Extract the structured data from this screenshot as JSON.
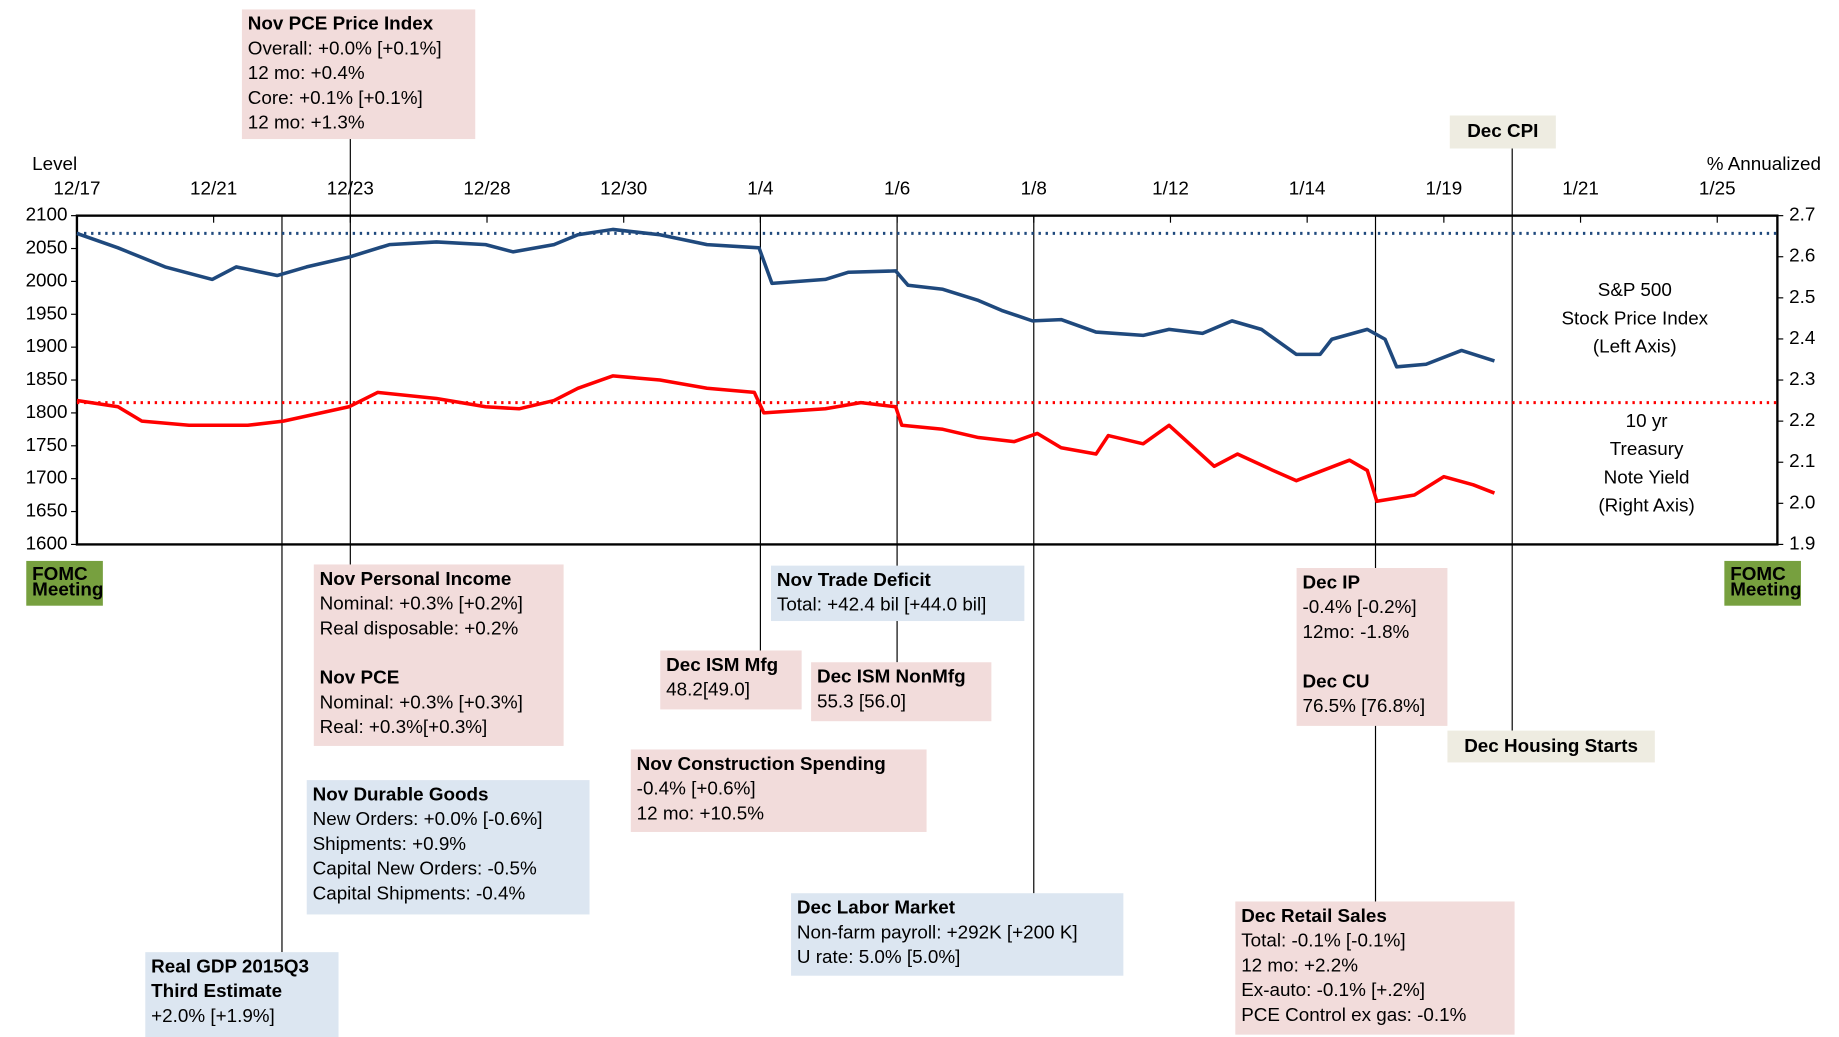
{
  "chart_data": {
    "type": "line",
    "y_label": "Level",
    "y2_label": "% Annualized",
    "xlim": [
      0,
      24.88
    ],
    "xticks": [
      {
        "value": 0,
        "label": "12/17"
      },
      {
        "value": 2,
        "label": "12/21"
      },
      {
        "value": 4,
        "label": "12/23"
      },
      {
        "value": 6,
        "label": "12/28"
      },
      {
        "value": 8,
        "label": "12/30"
      },
      {
        "value": 10,
        "label": "1/4"
      },
      {
        "value": 12,
        "label": "1/6"
      },
      {
        "value": 14,
        "label": "1/8"
      },
      {
        "value": 16,
        "label": "1/12"
      },
      {
        "value": 18,
        "label": "1/14"
      },
      {
        "value": 20,
        "label": "1/19"
      },
      {
        "value": 22,
        "label": "1/21"
      },
      {
        "value": 24,
        "label": "1/25"
      }
    ],
    "ylim": [
      1600,
      2100
    ],
    "yticks": [
      1600,
      1650,
      1700,
      1750,
      1800,
      1850,
      1900,
      1950,
      2000,
      2050,
      2100
    ],
    "y2lim": [
      1.9,
      2.7
    ],
    "y2ticks": [
      1.9,
      {
        "value": 2,
        "label": "2.0"
      },
      2.1,
      2.2,
      2.3,
      2.4,
      2.5,
      2.6,
      2.7
    ],
    "series": [
      {
        "label": [
          "S&P 500",
          "Stock  Price Index",
          "(Left Axis)"
        ],
        "color": "#1f497d",
        "ref": 2073,
        "x": [
          0,
          0.6,
          1.29,
          1.98,
          2.33,
          2.93,
          3.36,
          3.98,
          4.57,
          5.26,
          5.98,
          6.38,
          6.98,
          7.33,
          7.84,
          8.53,
          9.22,
          9.98,
          10.17,
          10.95,
          11.29,
          11.98,
          12.16,
          12.67,
          13.19,
          13.53,
          13.98,
          14.4,
          14.91,
          15.6,
          15.98,
          16.47,
          16.9,
          17.33,
          17.84,
          18.19,
          18.36,
          18.88,
          19.14,
          19.31,
          19.74,
          20.26,
          20.74
        ],
        "values": [
          2073,
          2051,
          2022,
          2003,
          2022,
          2009,
          2022,
          2037,
          2056,
          2060,
          2056,
          2045,
          2056,
          2071,
          2079,
          2071,
          2056,
          2051,
          1997,
          2003,
          2014,
          2016,
          1994,
          1988,
          1971,
          1956,
          1940,
          1942,
          1923,
          1918,
          1927,
          1921,
          1940,
          1927,
          1889,
          1889,
          1912,
          1927,
          1912,
          1870,
          1874,
          1895,
          1879
        ]
      },
      {
        "label": [
          "10 yr",
          "Treasury",
          "Note Yield",
          "(Right Axis)"
        ],
        "color": "#ff0000",
        "axis": "y2",
        "ref": 2.245,
        "x": [
          0,
          0.6,
          0.95,
          1.64,
          2.5,
          3.02,
          3.98,
          4.4,
          5.26,
          5.98,
          6.47,
          6.98,
          7.33,
          7.84,
          8.53,
          9.22,
          9.91,
          10.05,
          10.95,
          11.47,
          11.98,
          12.07,
          12.67,
          13.19,
          13.71,
          14.05,
          14.4,
          14.91,
          15.09,
          15.6,
          15.98,
          16.64,
          16.98,
          17.5,
          17.84,
          18.62,
          18.88,
          19.02,
          19.57,
          20,
          20.43,
          20.74
        ],
        "values": [
          2.25,
          2.235,
          2.2,
          2.19,
          2.19,
          2.2,
          2.235,
          2.27,
          2.255,
          2.235,
          2.23,
          2.25,
          2.28,
          2.31,
          2.3,
          2.28,
          2.27,
          2.22,
          2.23,
          2.245,
          2.235,
          2.19,
          2.18,
          2.16,
          2.15,
          2.17,
          2.135,
          2.12,
          2.165,
          2.145,
          2.19,
          2.09,
          2.12,
          2.08,
          2.055,
          2.105,
          2.08,
          2.005,
          2.02,
          2.065,
          2.045,
          2.025
        ]
      }
    ],
    "annotations": [
      {
        "x": 4,
        "color": "#f2dcdb",
        "sections": [
          {
            "title": [
              "Nov PCE Price Index"
            ],
            "lines": [
              "Overall: +0.0% [+0.1%]",
              "12 mo: +0.4%",
              "Core: +0.1% [+0.1%]",
              "12 mo: +1.3%"
            ]
          }
        ]
      },
      {
        "x": 21,
        "color": "#eeece1",
        "sections": [
          {
            "title": [
              "Dec CPI"
            ],
            "lines": []
          }
        ]
      },
      {
        "color": "#f2dcdb",
        "sections": [
          {
            "title": [
              "Nov Personal Income"
            ],
            "lines": [
              "Nominal:  +0.3% [+0.2%]",
              "Real disposable: +0.2%"
            ]
          },
          {
            "title": [
              "Nov PCE"
            ],
            "lines": [
              "Nominal: +0.3% [+0.3%]",
              "Real: +0.3%[+0.3%]"
            ]
          }
        ]
      },
      {
        "color": "#dce6f1",
        "sections": [
          {
            "title": [
              "Nov Durable Goods"
            ],
            "lines": [
              "New Orders: +0.0% [-0.6%]",
              "Shipments: +0.9%",
              "Capital New Orders: -0.5%",
              "Capital Shipments: -0.4%"
            ]
          }
        ]
      },
      {
        "x": 3,
        "color": "#dce6f1",
        "sections": [
          {
            "title": [
              "Real GDP 2015Q3",
              "Third Estimate"
            ],
            "lines": [
              "+2.0% [+1.9%]"
            ]
          }
        ]
      },
      {
        "x": 10,
        "color": "#f2dcdb",
        "sections": [
          {
            "title": [
              "Dec ISM Mfg"
            ],
            "lines": [
              "48.2[49.0]"
            ]
          }
        ]
      },
      {
        "color": "#f2dcdb",
        "sections": [
          {
            "title": [
              "Nov Construction Spending"
            ],
            "lines": [
              "-0.4% [+0.6%]",
              "12 mo: +10.5%"
            ]
          }
        ]
      },
      {
        "x": 12,
        "color": "#dce6f1",
        "sections": [
          {
            "title": [
              "Nov Trade Deficit"
            ],
            "lines": [
              "Total: +42.4 bil [+44.0 bil]"
            ]
          }
        ]
      },
      {
        "color": "#f2dcdb",
        "sections": [
          {
            "title": [
              "Dec ISM NonMfg"
            ],
            "lines": [
              "55.3 [56.0]"
            ]
          }
        ]
      },
      {
        "x": 14,
        "color": "#dce6f1",
        "sections": [
          {
            "title": [
              "Dec Labor Market"
            ],
            "lines": [
              "Non-farm payroll: +292K [+200 K]",
              "U rate: 5.0% [5.0%]"
            ]
          }
        ]
      },
      {
        "x": 19,
        "color": "#f2dcdb",
        "sections": [
          {
            "title": [
              "Dec IP"
            ],
            "lines": [
              "-0.4% [-0.2%]",
              "12mo: -1.8%"
            ]
          },
          {
            "title": [
              "Dec CU"
            ],
            "lines": [
              "76.5% [76.8%]"
            ]
          }
        ]
      },
      {
        "color": "#f2dcdb",
        "sections": [
          {
            "title": [
              "Dec Retail Sales"
            ],
            "lines": [
              " Total: -0.1% [-0.1%]",
              "12 mo: +2.2%",
              "Ex-auto: -0.1% [+.2%]",
              "PCE Control ex gas: -0.1%"
            ]
          }
        ]
      },
      {
        "color": "#eeece1",
        "sections": [
          {
            "title": [
              "Dec Housing Starts"
            ],
            "lines": []
          }
        ]
      },
      {
        "color": "#77a03f",
        "small": true,
        "sections": [
          {
            "title": [
              "FOMC",
              "Meeting"
            ],
            "lines": []
          }
        ]
      },
      {
        "color": "#77a03f",
        "small": true,
        "sections": [
          {
            "title": [
              "FOMC",
              "Meeting"
            ],
            "lines": []
          }
        ]
      }
    ]
  }
}
